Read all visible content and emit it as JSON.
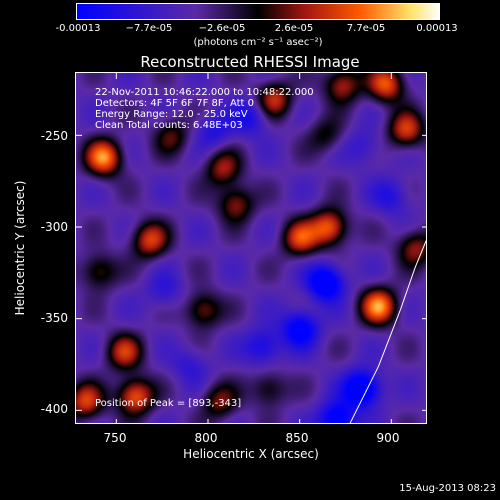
{
  "colorbar": {
    "ticks": [
      "-0.00013",
      "−7.7e-05",
      "−2.6e-05",
      "2.6e-05",
      "7.7e-05",
      "0.00013"
    ],
    "unit": "(photons cm⁻² s⁻¹ asec⁻²)",
    "range": [
      -0.00013,
      0.00013
    ],
    "colors": [
      "#0000ff",
      "#5b2aa6",
      "#000000",
      "#a31712",
      "#ff5a00",
      "#ffe36b",
      "#ffffff"
    ]
  },
  "annotations": {
    "line1": "22-Nov-2011 10:46:22.000 to 10:48:22.000",
    "line2": "Detectors: 4F 5F 6F 7F 8F, Att 0",
    "line3": "Energy Range: 12.0 - 25.0 keV",
    "line4": "Clean    Total counts: 6.48E+03",
    "peak": "Position of Peak = [893,-343]"
  },
  "chart_data": {
    "type": "heatmap",
    "title": "Reconstructed RHESSI Image",
    "xlabel": "Heliocentric X (arcsec)",
    "ylabel": "Heliocentric Y (arcsec)",
    "xlim": [
      728,
      920
    ],
    "ylim": [
      -408,
      -216
    ],
    "xticks": [
      "750",
      "800",
      "850",
      "900"
    ],
    "xtick_values": [
      750,
      800,
      850,
      900
    ],
    "yticks": [
      "-250",
      "-300",
      "-350",
      "-400"
    ],
    "ytick_values": [
      -250,
      -300,
      -350,
      -400
    ],
    "peak_position": [
      893,
      -343
    ],
    "sources": [
      {
        "x": 743,
        "y": -262,
        "value": 0.00013
      },
      {
        "x": 760,
        "y": -392,
        "value": 0.00012
      },
      {
        "x": 733,
        "y": -395,
        "value": 0.0001
      },
      {
        "x": 893,
        "y": -343,
        "value": 0.00013
      },
      {
        "x": 897,
        "y": -222,
        "value": 0.00011
      },
      {
        "x": 908,
        "y": -247,
        "value": 0.0001
      },
      {
        "x": 873,
        "y": -222,
        "value": 9e-05
      },
      {
        "x": 866,
        "y": -300,
        "value": 0.00012
      },
      {
        "x": 850,
        "y": -306,
        "value": 0.0001
      },
      {
        "x": 768,
        "y": -307,
        "value": 0.0001
      },
      {
        "x": 815,
        "y": -287,
        "value": 8e-05
      },
      {
        "x": 836,
        "y": -230,
        "value": 9e-05
      },
      {
        "x": 808,
        "y": -268,
        "value": 8e-05
      },
      {
        "x": 754,
        "y": -368,
        "value": 9e-05
      },
      {
        "x": 797,
        "y": -345,
        "value": 8e-05
      },
      {
        "x": 740,
        "y": -324,
        "value": 7e-05
      },
      {
        "x": 806,
        "y": -395,
        "value": 7e-05
      },
      {
        "x": 833,
        "y": -388,
        "value": 6e-05
      },
      {
        "x": 780,
        "y": -250,
        "value": 6e-05
      },
      {
        "x": 913,
        "y": -311,
        "value": 8e-05
      },
      {
        "x": 864,
        "y": -250,
        "value": 5e-05
      },
      {
        "x": 864,
        "y": -330,
        "value": -0.00012
      },
      {
        "x": 884,
        "y": -388,
        "value": -0.00013
      },
      {
        "x": 850,
        "y": -355,
        "value": -0.0001
      },
      {
        "x": 870,
        "y": -405,
        "value": -0.00011
      },
      {
        "x": 823,
        "y": -240,
        "value": -6e-05
      },
      {
        "x": 803,
        "y": -247,
        "value": -5e-05
      },
      {
        "x": 830,
        "y": -365,
        "value": -7e-05
      },
      {
        "x": 790,
        "y": -375,
        "value": -4e-05
      },
      {
        "x": 900,
        "y": -283,
        "value": -5e-05
      },
      {
        "x": 776,
        "y": -335,
        "value": -4e-05
      },
      {
        "x": 885,
        "y": -256,
        "value": -4e-05
      }
    ],
    "limb_curve": [
      [
        877,
        -408
      ],
      [
        893,
        -376
      ],
      [
        905,
        -345
      ],
      [
        913,
        -322
      ],
      [
        920,
        -305
      ]
    ]
  },
  "footer": "15-Aug-2013 08:23"
}
